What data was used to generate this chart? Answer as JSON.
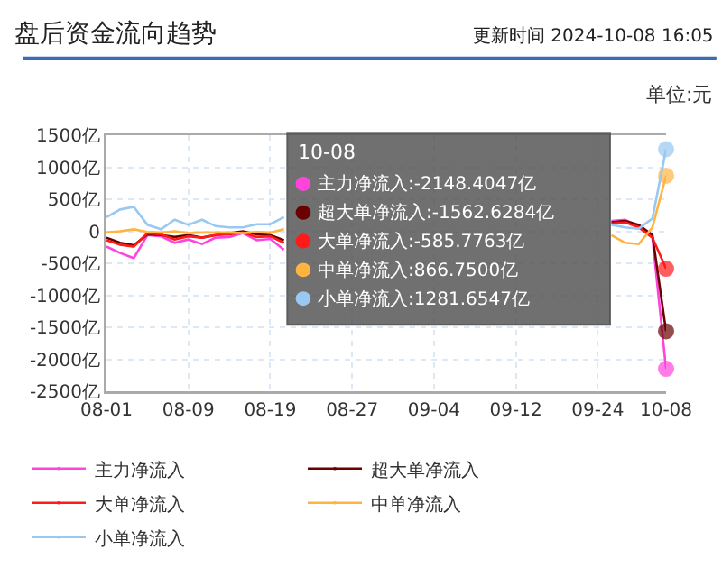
{
  "chart_data": {
    "type": "line",
    "title": "盘后资金流向趋势",
    "subtitle": "更新时间 2024-10-08 16:05",
    "categories": [
      "08-01",
      null,
      null,
      null,
      null,
      null,
      "08-09",
      null,
      null,
      null,
      null,
      null,
      "08-19",
      null,
      null,
      null,
      null,
      null,
      "08-27",
      null,
      null,
      null,
      null,
      null,
      "09-04",
      null,
      null,
      null,
      null,
      null,
      "09-12",
      null,
      null,
      null,
      null,
      null,
      "09-24",
      null,
      null,
      null,
      null,
      "10-08"
    ],
    "series": [
      {
        "name": "主力净流入",
        "color": "#ff44dd",
        "values": [
          -240,
          -340,
          -420,
          -60,
          -80,
          -180,
          -130,
          -200,
          -100,
          -90,
          -30,
          -140,
          -120,
          -290,
          null,
          null,
          null,
          null,
          null,
          null,
          null,
          null,
          null,
          null,
          null,
          null,
          null,
          null,
          null,
          null,
          null,
          null,
          null,
          null,
          null,
          null,
          null,
          160,
          180,
          80,
          -100,
          -2148.4047
        ]
      },
      {
        "name": "超大单净流入",
        "color": "#6b0000",
        "values": [
          -100,
          -180,
          -220,
          -50,
          -60,
          -90,
          -60,
          -100,
          -60,
          -30,
          0,
          -50,
          -60,
          -140,
          null,
          null,
          null,
          null,
          null,
          null,
          null,
          null,
          null,
          null,
          null,
          null,
          null,
          null,
          null,
          null,
          null,
          null,
          null,
          null,
          null,
          null,
          null,
          140,
          160,
          100,
          -60,
          -1562.6284
        ]
      },
      {
        "name": "大单净流入",
        "color": "#ff1a1a",
        "values": [
          -140,
          -210,
          -240,
          -30,
          -50,
          -130,
          -80,
          -100,
          -60,
          -50,
          -20,
          -90,
          -80,
          -180,
          null,
          null,
          null,
          null,
          null,
          null,
          null,
          null,
          null,
          null,
          null,
          null,
          null,
          null,
          null,
          null,
          null,
          null,
          null,
          null,
          null,
          null,
          null,
          120,
          140,
          60,
          -100,
          -585.7763
        ]
      },
      {
        "name": "中单净流入",
        "color": "#ffb340",
        "values": [
          -20,
          0,
          30,
          -10,
          -20,
          0,
          -30,
          -20,
          -20,
          -20,
          -30,
          -10,
          -20,
          30,
          null,
          null,
          null,
          null,
          null,
          null,
          null,
          null,
          null,
          null,
          null,
          null,
          null,
          null,
          null,
          null,
          null,
          null,
          null,
          null,
          null,
          null,
          null,
          -60,
          -180,
          -200,
          60,
          866.75
        ]
      },
      {
        "name": "小单净流入",
        "color": "#99c8f0",
        "values": [
          220,
          340,
          380,
          100,
          30,
          180,
          100,
          180,
          80,
          60,
          60,
          110,
          110,
          220,
          null,
          null,
          null,
          null,
          null,
          null,
          null,
          null,
          null,
          null,
          null,
          null,
          null,
          null,
          null,
          null,
          null,
          null,
          null,
          null,
          null,
          null,
          null,
          100,
          60,
          40,
          200,
          1281.6547
        ]
      }
    ],
    "ylim": [
      -2500,
      1500
    ],
    "yticks": [
      {
        "value": 1500,
        "label": "1500亿"
      },
      {
        "value": 1000,
        "label": "1000亿"
      },
      {
        "value": 500,
        "label": "500亿"
      },
      0,
      {
        "value": -500,
        "label": "-500亿"
      },
      {
        "value": -1000,
        "label": "-1000亿"
      },
      {
        "value": -1500,
        "label": "-1500亿"
      },
      {
        "value": -2000,
        "label": "-2000亿"
      },
      {
        "value": -2500,
        "label": "-2500亿"
      }
    ],
    "grid": true,
    "legend": "bottom",
    "annotations": [
      "单位:元",
      "10-08",
      "主力净流入:-2148.4047亿",
      "超大单净流入:-1562.6284亿",
      "大单净流入:-585.7763亿",
      "中单净流入:866.7500亿",
      "小单净流入:1281.6547亿"
    ]
  }
}
